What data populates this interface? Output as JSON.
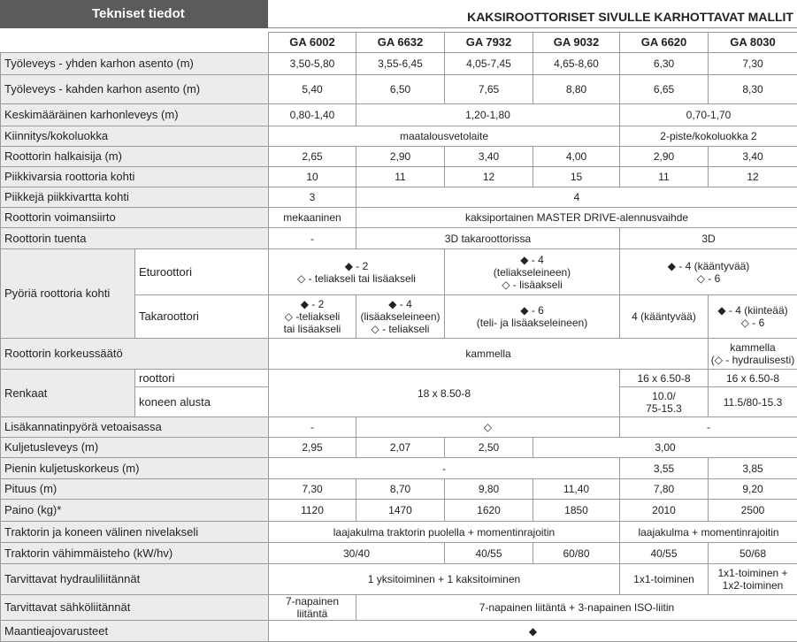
{
  "header": {
    "title": "Tekniset tiedot",
    "subtitle": "KAKSIROOTTORISET SIVULLE KARHOTTAVAT MALLIT"
  },
  "table": {
    "models": [
      "GA 6002",
      "GA 6632",
      "GA 7932",
      "GA 9032",
      "GA 6620",
      "GA 8030"
    ],
    "rows": [
      {
        "label": "Työleveys - yhden karhon asento (m)",
        "cells": [
          "3,50-5,80",
          "3,55-6,45",
          "4,05-7,45",
          "4,65-8,60",
          "6,30",
          "7,30"
        ]
      },
      {
        "label": "Työleveys - kahden karhon asento (m)",
        "cells": [
          "5,40",
          "6,50",
          "7,65",
          "8,80",
          "6,65",
          "8,30"
        ]
      },
      {
        "label": "Keskimääräinen karhonleveys (m)",
        "cells": [
          "0,80-1,40",
          "1,20-1,80",
          "0,70-1,70"
        ]
      },
      {
        "label": "Kiinnitys/kokoluokka",
        "cells": [
          "maatalousvetolaite",
          "2-piste/kokoluokka 2"
        ]
      },
      {
        "label": "Roottorin halkaisija (m)",
        "cells": [
          "2,65",
          "2,90",
          "3,40",
          "4,00",
          "2,90",
          "3,40"
        ]
      },
      {
        "label": "Piikkivarsia roottoria kohti",
        "cells": [
          "10",
          "11",
          "12",
          "15",
          "11",
          "12"
        ]
      },
      {
        "label": "Piikkejä piikkivartta kohti",
        "cells": [
          "3",
          "4"
        ]
      },
      {
        "label": "Roottorin voimansiirto",
        "cells": [
          "mekaaninen",
          "kaksiportainen MASTER DRIVE-alennusvaihde"
        ]
      },
      {
        "label": "Roottorin tuenta",
        "cells": [
          "-",
          "3D takaroottorissa",
          "3D"
        ]
      },
      {
        "label": "Pyöriä roottoria kohti",
        "parts": [
          {
            "label": "Eturoottori",
            "cells": [
              "◆ - 2\n◇ - teliakseli tai lisäakseli",
              "◆ - 4\n(teliakseleineen)\n◇ - lisäakseli",
              "◆ - 4 (kääntyvää)\n◇ - 6"
            ]
          },
          {
            "label": "Takaroottori",
            "cells": [
              "◆ - 2\n◇ -teliakseli\ntai lisäakseli",
              "◆ - 4\n(lisäakseleineen)\n◇ - teliakseli",
              "◆ - 6\n(teli- ja lisäakseleineen)",
              "4 (kääntyvää)",
              "◆ - 4 (kiinteää)\n◇ - 6"
            ]
          }
        ]
      },
      {
        "label": "Roottorin korkeussäätö",
        "cells": [
          "kammella",
          "kammella\n(◇ - hydraulisesti)"
        ]
      },
      {
        "label": "Renkaat",
        "parts": [
          {
            "label": "roottori",
            "cells": [
              "18 x 8.50-8",
              "16 x 6.50-8",
              "16 x 6.50-8"
            ]
          },
          {
            "label": "koneen alusta",
            "cells": [
              "10.0/\n75-15.3",
              "11.5/80-15.3"
            ]
          }
        ]
      },
      {
        "label": "Lisäkannatinpyörä vetoaisassa",
        "cells": [
          "-",
          "◇",
          "-"
        ]
      },
      {
        "label": "Kuljetusleveys (m)",
        "cells": [
          "2,95",
          "2,07",
          "2,50",
          "3,00"
        ]
      },
      {
        "label": "Pienin kuljetuskorkeus (m)",
        "cells": [
          "-",
          "3,55",
          "3,85"
        ]
      },
      {
        "label": "Pituus (m)",
        "cells": [
          "7,30",
          "8,70",
          "9,80",
          "11,40",
          "7,80",
          "9,20"
        ]
      },
      {
        "label": "Paino (kg)*",
        "cells": [
          "1120",
          "1470",
          "1620",
          "1850",
          "2010",
          "2500"
        ]
      },
      {
        "label": "Traktorin ja koneen välinen nivelakseli",
        "cells": [
          "laajakulma traktorin puolella + momentinrajoitin",
          "laajakulma + momentinrajoitin"
        ]
      },
      {
        "label": "Traktorin vähimmäisteho (kW/hv)",
        "cells": [
          "30/40",
          "40/55",
          "60/80",
          "40/55",
          "50/68"
        ]
      },
      {
        "label": "Tarvittavat hydrauliliitännät",
        "cells": [
          "1 yksitoiminen + 1 kaksitoiminen",
          "1x1-toiminen",
          "1x1-toiminen +\n1x2-toiminen"
        ]
      },
      {
        "label": "Tarvittavat sähköliitännät",
        "cells": [
          "7-napainen liitäntä",
          "7-napainen liitäntä + 3-napainen ISO-liitin"
        ]
      },
      {
        "label": "Maantieajovarusteet",
        "cells": [
          "◆"
        ]
      }
    ]
  }
}
